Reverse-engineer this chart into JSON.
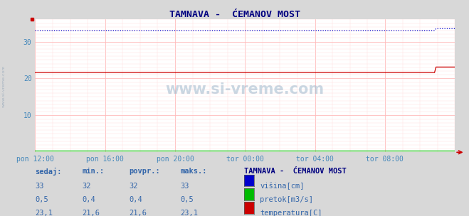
{
  "title": "TAMNAVA -  ĆEMANOV MOST",
  "bg_color": "#d8d8d8",
  "plot_bg_color": "#ffffff",
  "watermark": "www.si-vreme.com",
  "x_tick_labels": [
    "pon 12:00",
    "pon 16:00",
    "pon 20:00",
    "tor 00:00",
    "tor 04:00",
    "tor 08:00"
  ],
  "y_ticks": [
    10,
    20,
    30
  ],
  "ylim": [
    0,
    36
  ],
  "xlim": [
    0,
    288
  ],
  "height_base": 33.0,
  "height_end": 33.5,
  "flow_base": 0.5,
  "temp_base": 21.6,
  "temp_end": 23.1,
  "temp_jump_idx": 275,
  "height_color": "#0000cc",
  "flow_color": "#00bb00",
  "temp_color": "#cc0000",
  "grid_major_color": "#ffbbbb",
  "grid_minor_color": "#ffdddd",
  "tick_label_color": "#4488bb",
  "title_color": "#000080",
  "stat_color": "#3366aa",
  "legend_title": "TAMNAVA -  ĆEMANOV MOST",
  "legend_labels": [
    "višina[cm]",
    "pretok[m3/s]",
    "temperatura[C]"
  ],
  "table_headers": [
    "sedaj:",
    "min.:",
    "povpr.:",
    "maks.:"
  ],
  "table_rows": [
    [
      "33",
      "32",
      "32",
      "33"
    ],
    [
      "0,5",
      "0,4",
      "0,4",
      "0,5"
    ],
    [
      "23,1",
      "21,6",
      "21,6",
      "23,1"
    ]
  ],
  "row_colors": [
    "#0000cc",
    "#00bb00",
    "#cc0000"
  ],
  "n_points": 289,
  "x_major_ticks": [
    0,
    48,
    96,
    144,
    192,
    240
  ],
  "left_marker_color": "#cc0000",
  "arrow_color": "#cc0000"
}
